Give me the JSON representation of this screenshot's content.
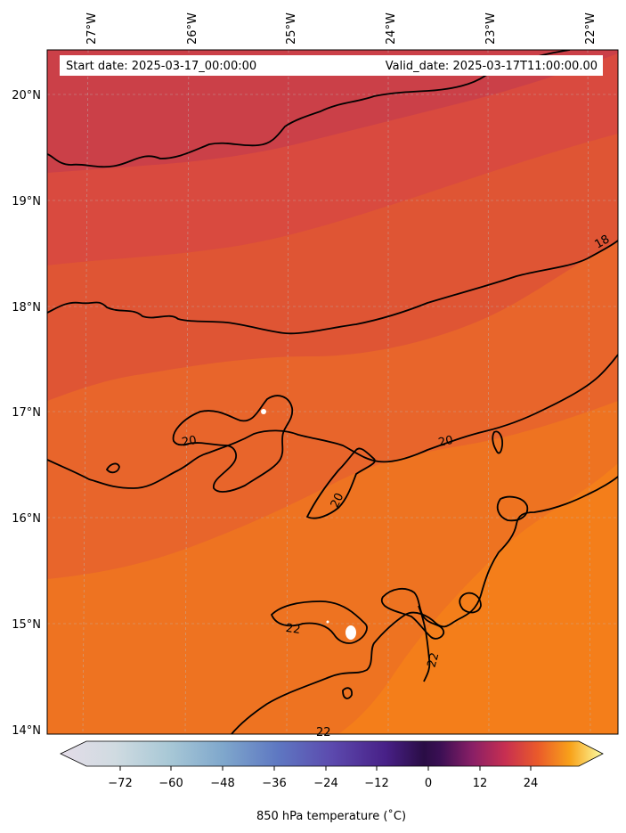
{
  "header": {
    "start_date": "Start date: 2025-03-17_00:00:00",
    "valid_date": "Valid_date: 2025-03-17T11:00:00.00"
  },
  "axes": {
    "lon_labels": [
      "27°W",
      "26°W",
      "25°W",
      "24°W",
      "23°W",
      "22°W"
    ],
    "lat_labels": [
      "20°N",
      "19°N",
      "18°N",
      "17°N",
      "16°N",
      "15°N",
      "14°N"
    ]
  },
  "contour_labels": [
    "18",
    "20",
    "20",
    "20",
    "22",
    "22",
    "22"
  ],
  "colorbar": {
    "title": "850 hPa temperature ($^\\circ$C)",
    "display_title": "850 hPa temperature (˚C)",
    "ticks": [
      "−72",
      "−60",
      "−48",
      "−36",
      "−24",
      "−12",
      "0",
      "12",
      "24"
    ],
    "range": [
      -84,
      36
    ],
    "colormap": "inferno-like with light blue/grey low end",
    "colors": [
      "#e4dce8",
      "#c9d8df",
      "#9fc3d4",
      "#6f9fca",
      "#5a6fbf",
      "#5a3fa6",
      "#3d1466",
      "#220b3a",
      "#6b1a6b",
      "#b8255a",
      "#e8452b",
      "#f7821a",
      "#fac52a",
      "#fcfea4"
    ]
  },
  "map_colors": {
    "band_19": "#cb4048",
    "band_18": "#d94a3f",
    "band_17": "#df5534",
    "band_16": "#e8652b",
    "band_15": "#ee7321",
    "band_14": "#f47e1a"
  }
}
